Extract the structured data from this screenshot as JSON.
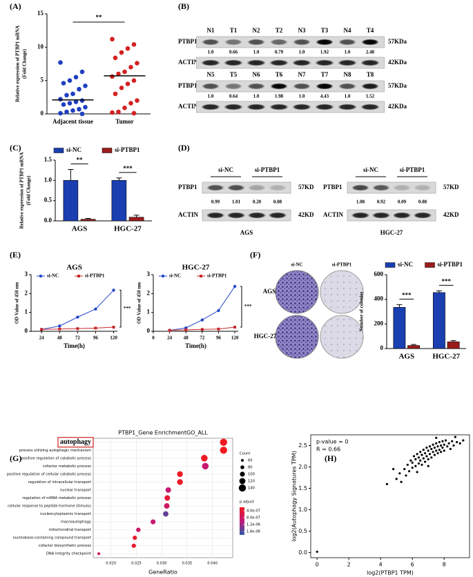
{
  "panel_labels": [
    "(A)",
    "(B)",
    "(C)",
    "(D)",
    "(E)",
    "(F)",
    "(G)",
    "(H)"
  ],
  "blots_B": [
    {
      "lanes": [
        "N1",
        "T1",
        "N2",
        "T2",
        "N3",
        "T3",
        "N4",
        "T4"
      ],
      "target": "PTBP1",
      "target_size": "57KDa",
      "ratios": [
        "1.0",
        "0.66",
        "1.0",
        "0.79",
        "1.0",
        "1.92",
        "1.0",
        "2.48"
      ],
      "ratio_colors": [
        "#000000",
        "#000000",
        "#000000",
        "#000000",
        "#000000",
        "#c00000",
        "#000000",
        "#c00000"
      ],
      "control": "ACTIN",
      "control_size": "42KDa"
    },
    {
      "lanes": [
        "N5",
        "T5",
        "N6",
        "T6",
        "N7",
        "T7",
        "N8",
        "T8"
      ],
      "target": "PTBP1",
      "target_size": "57KDa",
      "ratios": [
        "1.0",
        "0.64",
        "1.0",
        "1.98",
        "1.0",
        "4.43",
        "1.0",
        "1.52"
      ],
      "ratio_colors": [
        "#000000",
        "#000000",
        "#000000",
        "#c00000",
        "#000000",
        "#c00000",
        "#000000",
        "#c00000"
      ],
      "control": "ACTIN",
      "control_size": "42KDa"
    }
  ],
  "blots_D": [
    {
      "cell": "AGS",
      "groups": [
        "si-NC",
        "si-PTBP1"
      ],
      "target": "PTBP1",
      "target_size": "57KD",
      "ratios": [
        "0.99",
        "1.01",
        "0.20",
        "0.08"
      ],
      "ratio_color": "#c00000",
      "control": "ACTIN",
      "control_size": "42KD"
    },
    {
      "cell": "HGC-27",
      "groups": [
        "si-NC",
        "si-PTBP1"
      ],
      "target": "PTBP1",
      "target_size": "57KD",
      "ratios": [
        "1.08",
        "0.92",
        "0.09",
        "0.08"
      ],
      "ratio_color": "#c00000",
      "control": "ACTIN",
      "control_size": "42KD"
    }
  ],
  "colony": {
    "columns": [
      "si-NC",
      "si-PTBP1"
    ],
    "rows": [
      "AGS",
      "HGC-27"
    ]
  },
  "chart_data": [
    {
      "type": "strip",
      "categories": [
        "Adjacent tissue",
        "Tumor"
      ],
      "values": [
        [
          7.7,
          6.3,
          5.5,
          5.0,
          4.6,
          4.2,
          3.7,
          3.0,
          2.8,
          2.2,
          2.0,
          1.8,
          1.6,
          1.4,
          1.0,
          0.7,
          0.5,
          0.3,
          0.1,
          0.0
        ],
        [
          11.2,
          10.4,
          9.8,
          9.2,
          8.4,
          7.6,
          7.0,
          6.3,
          6.0,
          5.6,
          5.0,
          4.5,
          3.9,
          3.0,
          2.0,
          1.6,
          0.9,
          0.3,
          0.2,
          0.1
        ]
      ],
      "means": [
        2.1,
        5.7
      ],
      "colors": [
        "#1f3fbf",
        "#d42020"
      ],
      "ylabel": [
        "Relative expression of PTBP1 mRNA",
        "(Fold Change)"
      ],
      "ylim": [
        0,
        15
      ],
      "yticks": [
        0,
        5,
        10,
        15
      ],
      "annotations": [
        "**"
      ]
    },
    {
      "type": "bar",
      "categories": [
        "AGS",
        "HGC-27"
      ],
      "series": [
        {
          "name": "si-NC",
          "color": "#1a3fb0",
          "values": [
            1.0,
            1.0
          ],
          "errors": [
            0.27,
            0.06
          ]
        },
        {
          "name": "si-PTBP1",
          "color": "#9b1c1c",
          "values": [
            0.04,
            0.09
          ],
          "errors": [
            0.02,
            0.05
          ]
        }
      ],
      "ylabel": [
        "Relative expression of PTBP1 mRNA",
        "(Fold Change)"
      ],
      "ylim": [
        0,
        1.5
      ],
      "yticks": [
        {
          "value": 0,
          "label": "0.0"
        },
        0.5,
        {
          "value": 1,
          "label": "1.0"
        },
        1.5
      ],
      "annotations": [
        "**",
        "***"
      ],
      "legend": "top"
    },
    {
      "type": "line",
      "title": "AGS",
      "x": [
        24,
        48,
        72,
        96,
        120
      ],
      "series": [
        {
          "name": "si-NC",
          "color": "#2346c8",
          "marker": "circle",
          "values": [
            0.1,
            0.28,
            0.75,
            1.18,
            2.18
          ]
        },
        {
          "name": "si-PTBP1",
          "color": "#c8282a",
          "marker": "square",
          "values": [
            0.1,
            0.12,
            0.14,
            0.17,
            0.22
          ]
        }
      ],
      "xlabel": "Time(h)",
      "ylabel": "OD Value of 450 nm",
      "xlim": [
        10,
        125
      ],
      "xticks": [
        24,
        48,
        72,
        96,
        120
      ],
      "ylim": [
        0,
        3
      ],
      "yticks": [
        0,
        1,
        2,
        3
      ],
      "annotations": [
        "***"
      ],
      "legend": "top left"
    },
    {
      "type": "line",
      "title": "HGC-27",
      "x": [
        24,
        48,
        72,
        96,
        120
      ],
      "series": [
        {
          "name": "si-NC",
          "color": "#2346c8",
          "marker": "circle",
          "values": [
            0.05,
            0.18,
            0.6,
            1.1,
            2.38
          ]
        },
        {
          "name": "si-PTBP1",
          "color": "#c8282a",
          "marker": "square",
          "values": [
            0.05,
            0.08,
            0.1,
            0.12,
            0.22
          ]
        }
      ],
      "xlabel": "Time(h)",
      "ylabel": "OD Value of 450 nm",
      "xlim": [
        0,
        125
      ],
      "xticks": [
        0,
        24,
        48,
        72,
        96,
        120
      ],
      "ylim": [
        0,
        3
      ],
      "yticks": [
        0,
        1,
        2,
        3
      ],
      "annotations": [
        "***"
      ],
      "legend": "top left"
    },
    {
      "type": "bar",
      "categories": [
        "AGS",
        "HGC-27"
      ],
      "series": [
        {
          "name": "si-NC",
          "color": "#1a3fb0",
          "values": [
            335,
            455
          ],
          "errors": [
            22,
            14
          ]
        },
        {
          "name": "si-PTBP1",
          "color": "#9b1c1c",
          "values": [
            25,
            55
          ],
          "errors": [
            8,
            9
          ]
        }
      ],
      "ylabel": "Number of colonies",
      "ylim": [
        0,
        600
      ],
      "yticks": [
        0,
        200,
        400,
        600
      ],
      "annotations": [
        "***",
        "***"
      ],
      "legend": "top"
    },
    {
      "type": "dot",
      "title": "PTBP1_Gene EnrichmentGO_ALL",
      "xlabel": "GeneRatio",
      "categories": [
        "autophagy",
        "process utilizing autophagic mechanism",
        "positive regulation of catabolic process",
        "cofactor metabolic process",
        "positive regulation of cellular catabolic process",
        "regulation of intracellular transport",
        "nuclear transport",
        "regulation of mRNA metabolic process",
        "cellular response to peptide hormone stimulus",
        "nucleocytoplasmic transport",
        "macroautophagy",
        "mitochondrial transport",
        "nucleobase-containing compound transport",
        "cofactor biosynthetic process",
        "DNA integrity checkpoint"
      ],
      "values": [
        0.0422,
        0.0422,
        0.0384,
        0.0386,
        0.0336,
        0.0336,
        0.0313,
        0.0311,
        0.031,
        0.0308,
        0.0283,
        0.0254,
        0.0247,
        0.0245,
        0.0176
      ],
      "counts": [
        140,
        140,
        130,
        130,
        115,
        115,
        110,
        110,
        110,
        108,
        100,
        90,
        88,
        88,
        62
      ],
      "p_adjust": [
        2e-07,
        2e-07,
        2.5e-07,
        9e-07,
        2.5e-07,
        3e-07,
        9e-07,
        4e-07,
        8e-07,
        1.5e-06,
        9e-07,
        8e-07,
        3e-07,
        3e-07,
        8e-07
      ],
      "highlight": 0,
      "xlim": [
        0.0165,
        0.044
      ],
      "xticks": [
        {
          "value": 0.02,
          "label": "0.020"
        },
        {
          "value": 0.025,
          "label": "0.025"
        },
        {
          "value": 0.03,
          "label": "0.030"
        },
        {
          "value": 0.035,
          "label": "0.035"
        },
        {
          "value": 0.04,
          "label": "0.040"
        }
      ],
      "size_legend": {
        "title": "Count",
        "values": [
          60,
          80,
          100,
          120,
          140
        ]
      },
      "color_legend": {
        "title": "p.adjust",
        "clim": [
          2e-07,
          1.8e-06
        ],
        "colors": [
          "#f01a1e",
          "#c2187a",
          "#2c5aa6"
        ],
        "ticks": [
          {
            "value": 4e-07,
            "label": "4.0e-07"
          },
          {
            "value": 8e-07,
            "label": "8.0e-07"
          },
          {
            "value": 1.2e-06,
            "label": "1.2e-06"
          },
          {
            "value": 1.6e-06,
            "label": "1.6e-06"
          }
        ]
      }
    },
    {
      "type": "scatter",
      "color": "#000000",
      "xlabel": "log2(PTBP1 TPM)",
      "ylabel": "log2(Autophagy Signatures TPM)",
      "annotations": [
        "p-value = 0",
        "R = 0.66"
      ],
      "x": [
        5.0,
        5.2,
        5.3,
        5.5,
        5.6,
        5.7,
        5.8,
        5.9,
        6.0,
        6.0,
        6.1,
        6.2,
        6.2,
        6.3,
        6.4,
        6.4,
        6.5,
        6.5,
        6.6,
        6.6,
        6.7,
        6.7,
        6.8,
        6.8,
        6.9,
        6.9,
        7.0,
        7.0,
        7.1,
        7.1,
        7.2,
        7.2,
        7.3,
        7.3,
        7.4,
        7.4,
        7.5,
        7.5,
        7.6,
        7.6,
        7.7,
        7.7,
        7.8,
        7.8,
        7.9,
        7.9,
        8.0,
        8.0,
        8.1,
        8.2,
        8.3,
        8.4,
        8.5,
        8.6,
        8.8,
        9.0,
        9.2,
        6.3,
        7.0,
        4.4,
        4.8,
        7.5,
        8.7,
        0.0
      ],
      "y": [
        1.72,
        1.85,
        1.65,
        1.95,
        1.8,
        2.05,
        1.9,
        2.15,
        1.98,
        2.1,
        2.25,
        2.02,
        2.18,
        2.3,
        2.08,
        2.22,
        2.35,
        2.15,
        2.28,
        2.05,
        2.4,
        2.2,
        2.32,
        2.12,
        2.45,
        2.25,
        2.38,
        2.18,
        2.48,
        2.3,
        2.42,
        2.22,
        2.52,
        2.35,
        2.45,
        2.28,
        2.55,
        2.38,
        2.48,
        2.32,
        2.58,
        2.4,
        2.5,
        2.35,
        2.6,
        2.45,
        2.52,
        2.38,
        2.62,
        2.48,
        2.55,
        2.42,
        2.6,
        2.5,
        2.58,
        2.55,
        2.62,
        1.88,
        2.02,
        1.6,
        1.95,
        2.68,
        2.7,
        0.02
      ],
      "xlim": [
        -0.4,
        9.6
      ],
      "xticks": [
        0,
        2,
        4,
        6,
        8
      ],
      "ylim": [
        -0.12,
        2.75
      ],
      "yticks": [
        {
          "value": 0,
          "label": "0.0"
        },
        0.5,
        {
          "value": 1,
          "label": "1.0"
        },
        1.5,
        {
          "value": 2,
          "label": "2.0"
        },
        2.5
      ]
    }
  ]
}
